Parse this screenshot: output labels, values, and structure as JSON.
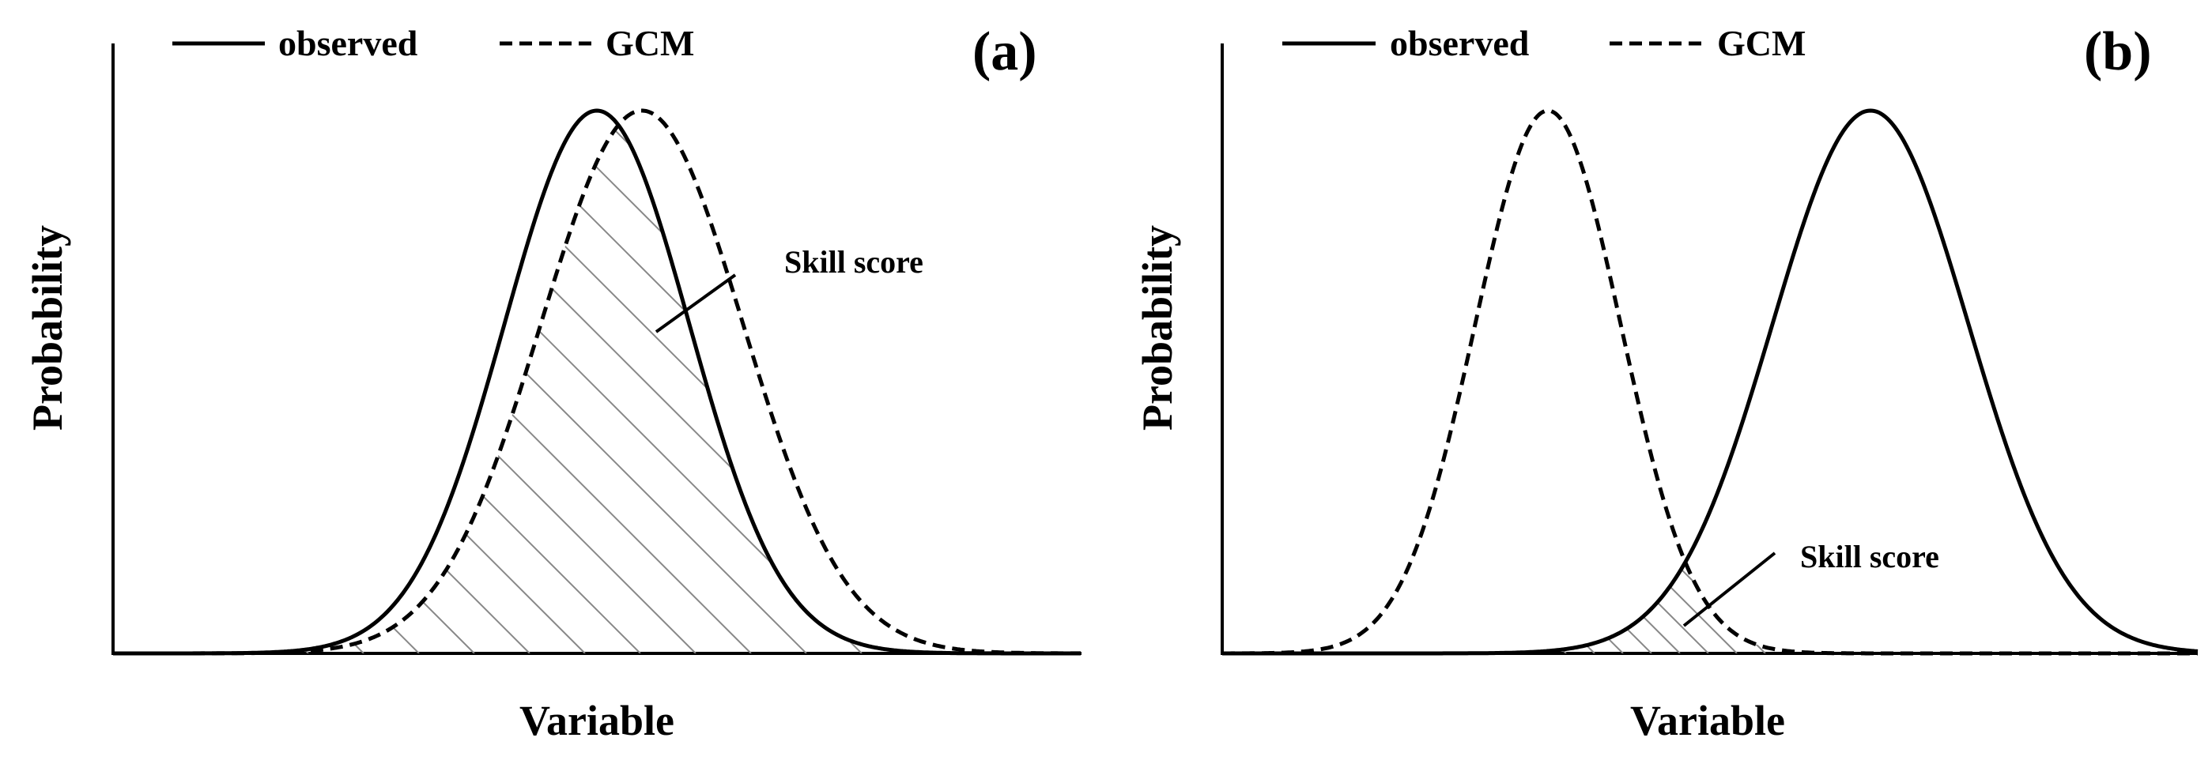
{
  "legend": {
    "observed_label": "observed",
    "gcm_label": "GCM"
  },
  "panels": [
    {
      "id": "a",
      "panel_label": "(a)",
      "y_axis_label": "Probability",
      "x_axis_label": "Variable",
      "annotation": "Skill score",
      "overlap": "large"
    },
    {
      "id": "b",
      "panel_label": "(b)",
      "y_axis_label": "Probability",
      "x_axis_label": "Variable",
      "annotation": "Skill score",
      "overlap": "small"
    }
  ],
  "colors": {
    "line": "#000000",
    "hatch": "#888888",
    "background": "#ffffff"
  }
}
